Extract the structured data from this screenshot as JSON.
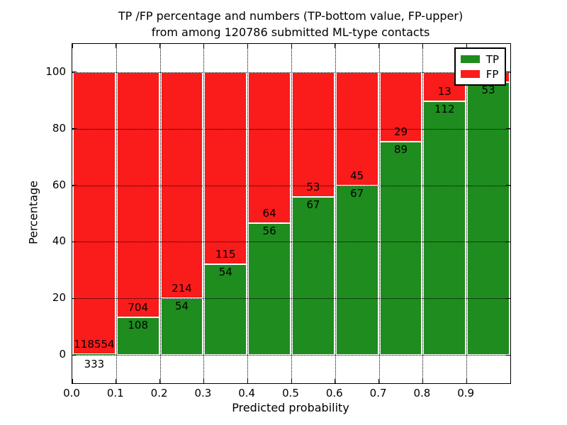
{
  "title": {
    "line1": "TP /FP percentage and numbers (TP-bottom value, FP-upper)",
    "line2": "from among 120786 submitted ML-type contacts"
  },
  "axes": {
    "xlabel": "Predicted probability",
    "ylabel": "Percentage",
    "x_ticks": [
      "0.0",
      "0.1",
      "0.2",
      "0.3",
      "0.4",
      "0.5",
      "0.6",
      "0.7",
      "0.8",
      "0.9"
    ],
    "y_ticks": [
      0,
      20,
      40,
      60,
      80,
      100
    ],
    "xlim": [
      0,
      1
    ],
    "ylim": [
      -10,
      110
    ],
    "grid": "dotted"
  },
  "legend": {
    "position": "upper-right",
    "items": [
      {
        "label": "TP",
        "color": "#1E8C1E"
      },
      {
        "label": "FP",
        "color": "#FA1B1B"
      }
    ]
  },
  "colors": {
    "tp": "#1E8C1E",
    "fp": "#FA1B1B",
    "grid": "#000000",
    "background": "#FFFFFF"
  },
  "chart_data": {
    "type": "bar",
    "stacked": true,
    "title": "TP /FP percentage and numbers (TP-bottom value, FP-upper) from among 120786 submitted ML-type contacts",
    "xlabel": "Predicted probability",
    "ylabel": "Percentage",
    "total_contacts": 120786,
    "categories": [
      "0.0-0.1",
      "0.1-0.2",
      "0.2-0.3",
      "0.3-0.4",
      "0.4-0.5",
      "0.5-0.6",
      "0.6-0.7",
      "0.7-0.8",
      "0.8-0.9",
      "0.9-1.0"
    ],
    "series": [
      {
        "name": "TP",
        "counts": [
          333,
          108,
          54,
          54,
          56,
          67,
          67,
          89,
          112,
          53
        ],
        "pct": [
          0.28,
          13.3,
          20.1,
          32.0,
          46.7,
          55.8,
          59.8,
          75.4,
          89.6,
          96.4
        ]
      },
      {
        "name": "FP",
        "counts": [
          118554,
          704,
          214,
          115,
          64,
          53,
          45,
          29,
          13,
          null
        ],
        "pct": [
          99.72,
          86.7,
          79.9,
          68.0,
          53.3,
          44.2,
          40.2,
          24.6,
          10.4,
          3.6
        ]
      }
    ],
    "ylim": [
      -10,
      110
    ],
    "legend_position": "upper right",
    "grid": true
  }
}
